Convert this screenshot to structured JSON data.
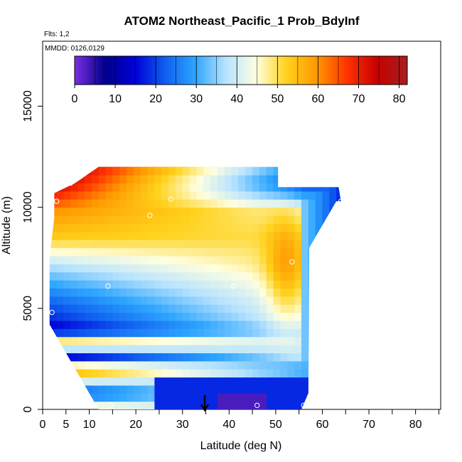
{
  "title": "ATOM2 Northeast_Pacific_1 Prob_BdyInf",
  "flights_label": "Flts: 1,2",
  "mmdd_label": "MMDD: 0126,0129",
  "chart_data": {
    "type": "heatmap",
    "xlabel": "Latitude (deg N)",
    "ylabel": "Altitude (m)",
    "xlim": [
      0,
      85
    ],
    "ylim": [
      0,
      18000
    ],
    "x_ticks": [
      0,
      5,
      10,
      20,
      30,
      40,
      50,
      60,
      70,
      80
    ],
    "x_minor_ticks": [
      15,
      25,
      35,
      45,
      55,
      65,
      75,
      85
    ],
    "y_ticks": [
      0,
      5000,
      10000,
      15000
    ],
    "colorbar": {
      "range": [
        0,
        82
      ],
      "ticks": [
        0,
        10,
        20,
        30,
        40,
        50,
        60,
        70,
        80
      ],
      "colors": [
        "#7b2fe0",
        "#00008c",
        "#0000d8",
        "#0f60f0",
        "#2ea6ff",
        "#b7e3ff",
        "#ffffe0",
        "#ffd21c",
        "#ff9900",
        "#ff3300",
        "#c80000",
        "#a52020"
      ]
    },
    "arrow_latitude": 35,
    "domain_boundary": [
      [
        12,
        0
      ],
      [
        55.5,
        0
      ],
      [
        57,
        800
      ],
      [
        57.2,
        8000
      ],
      [
        63,
        10300
      ],
      [
        64,
        10300
      ],
      [
        63.5,
        11000
      ],
      [
        50.5,
        11000
      ],
      [
        50.5,
        12000
      ],
      [
        12,
        12000
      ],
      [
        7,
        11200
      ],
      [
        2.5,
        10700
      ],
      [
        2.5,
        9500
      ],
      [
        1.5,
        7500
      ],
      [
        1.5,
        4200
      ],
      [
        4,
        3200
      ],
      [
        7,
        2000
      ],
      [
        12,
        0
      ]
    ],
    "profile_points": [
      [
        6,
        11200
      ],
      [
        3,
        10300
      ],
      [
        14,
        6100
      ],
      [
        2,
        4800
      ],
      [
        23,
        9600
      ],
      [
        27.5,
        10400
      ],
      [
        41,
        6100
      ],
      [
        53.5,
        7300
      ],
      [
        64,
        10300
      ],
      [
        14.5,
        200
      ],
      [
        46,
        200
      ],
      [
        56,
        200
      ]
    ]
  }
}
